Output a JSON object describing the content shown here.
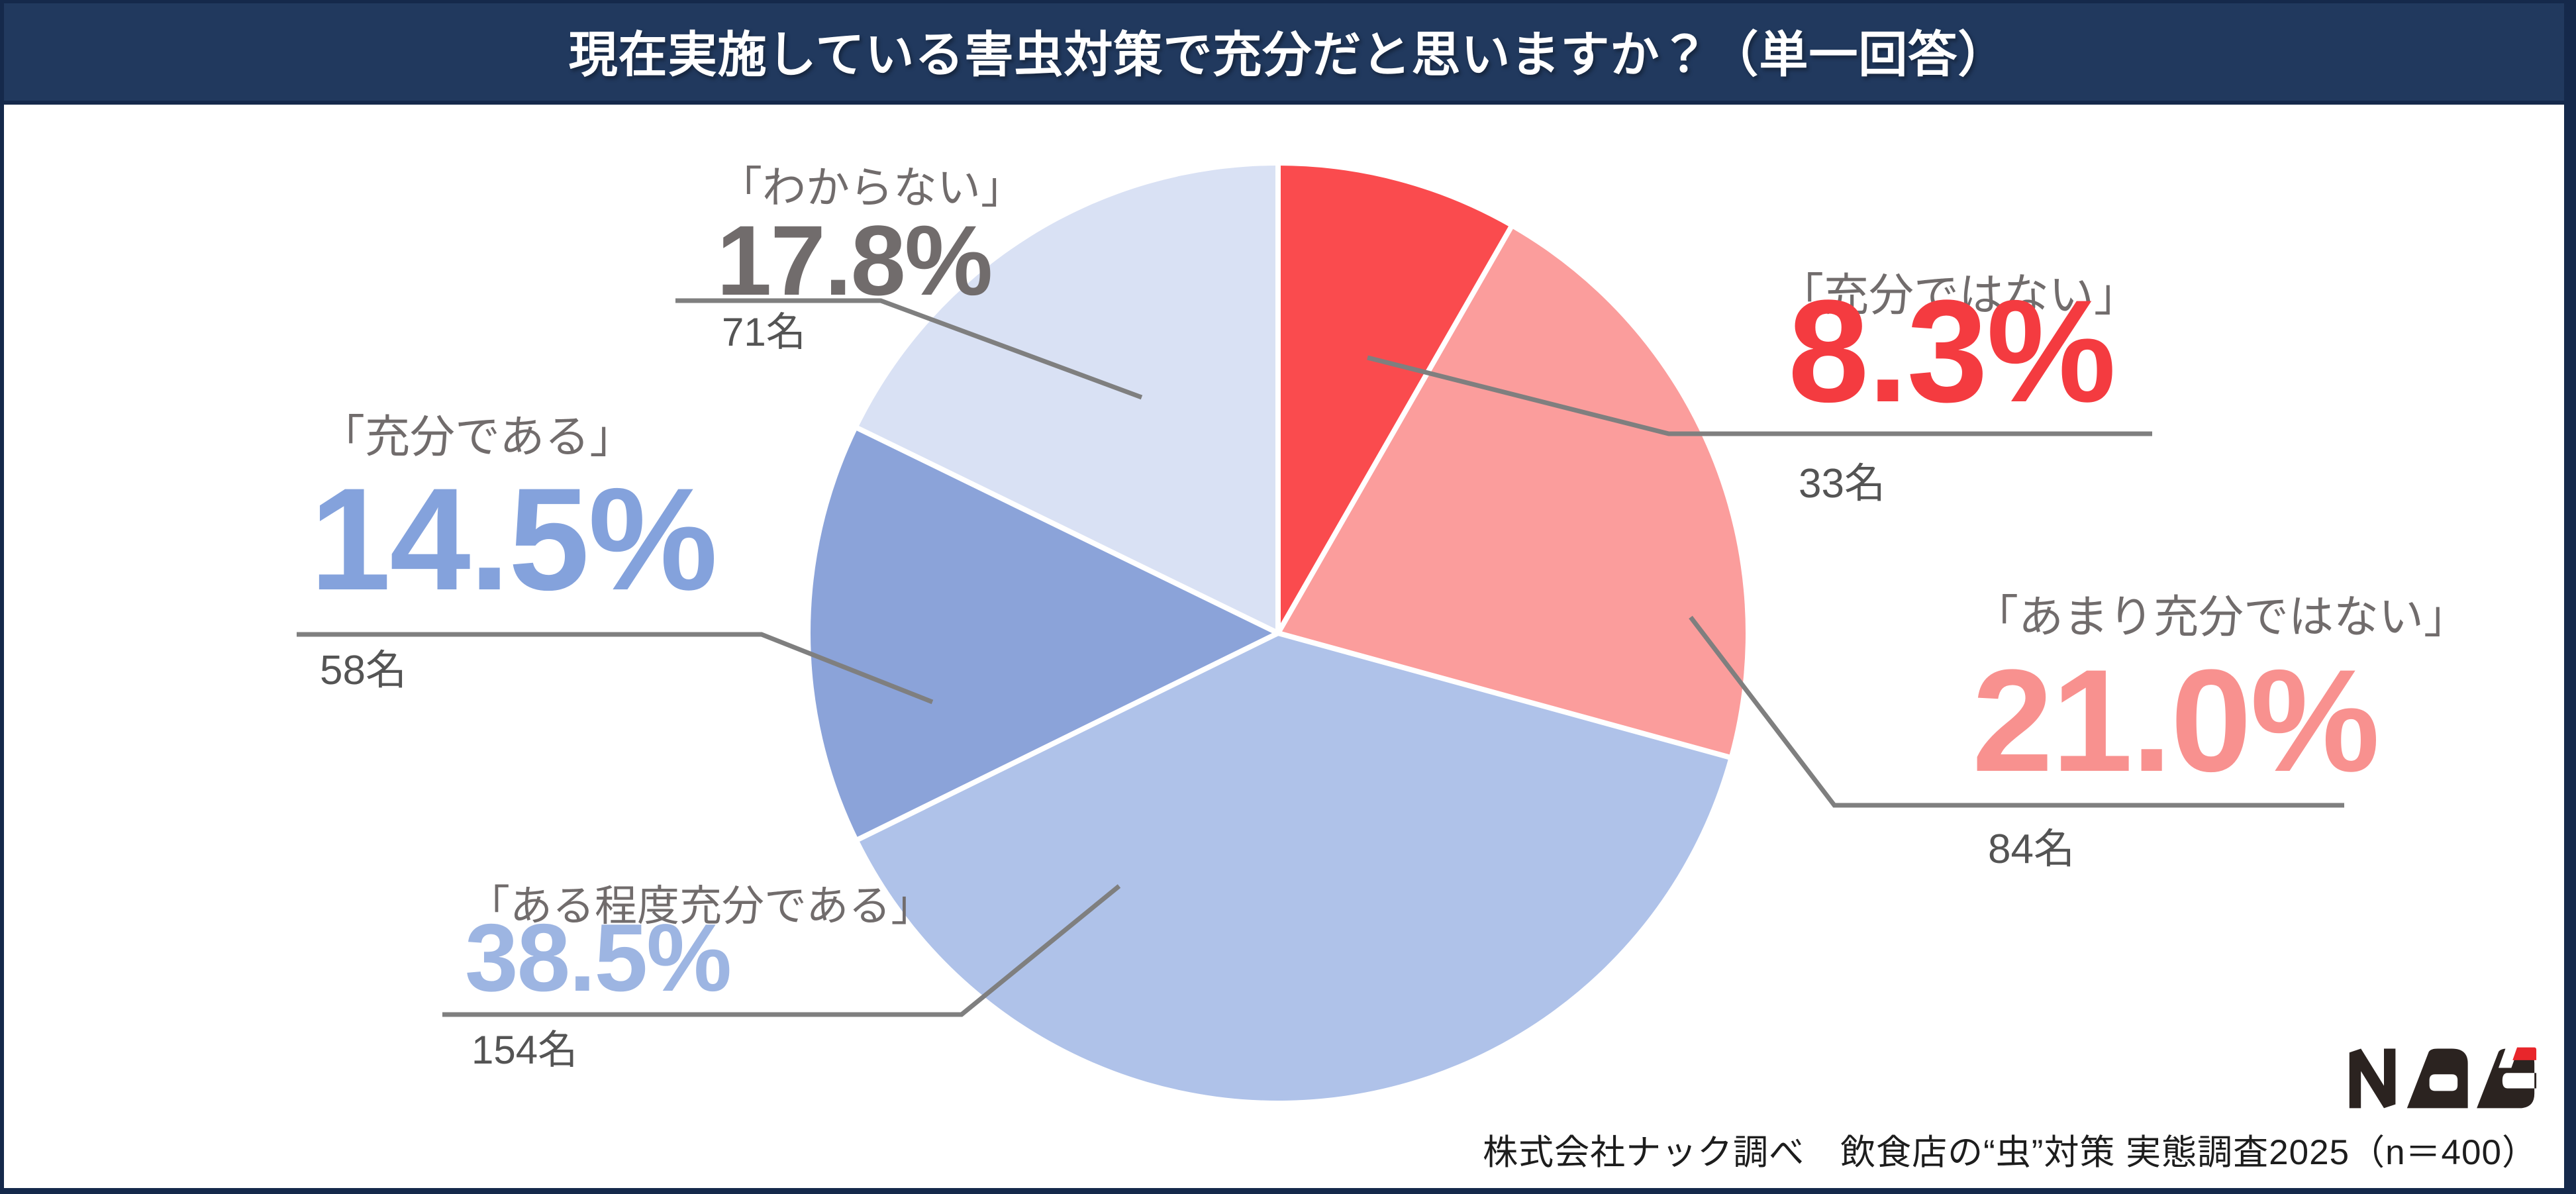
{
  "header": {
    "title": "現在実施している害虫対策で充分だと思いますか？（単一回答）"
  },
  "chart_data": {
    "type": "pie",
    "title": "現在実施している害虫対策で充分だと思いますか？（単一回答）",
    "start_angle": "12時方向",
    "direction": "clockwise",
    "legend_position": "around-pie",
    "total_n": 400,
    "slices": [
      {
        "name": "充分ではない",
        "label": "「充分ではない」",
        "pct": 8.3,
        "pct_text": "8.3%",
        "count": 33,
        "count_text": "33名",
        "color": "#FA4B4E",
        "text_color": "#F43B40"
      },
      {
        "name": "あまり充分ではない",
        "label": "「あまり充分ではない」",
        "pct": 21.0,
        "pct_text": "21.0%",
        "count": 84,
        "count_text": "84名",
        "color": "#FB9D9C",
        "text_color": "#F8918F"
      },
      {
        "name": "ある程度充分である",
        "label": "「ある程度充分である」",
        "pct": 38.5,
        "pct_text": "38.5%",
        "count": 154,
        "count_text": "154名",
        "color": "#AFC2E9",
        "text_color": "#9DB5E2"
      },
      {
        "name": "充分である",
        "label": "「充分である」",
        "pct": 14.5,
        "pct_text": "14.5%",
        "count": 58,
        "count_text": "58名",
        "color": "#8BA3D9",
        "text_color": "#84A2DC"
      },
      {
        "name": "わからない",
        "label": "「わからない」",
        "pct": 17.8,
        "pct_text": "17.8%",
        "count": 71,
        "count_text": "71名",
        "color": "#D9E1F4",
        "text_color": "#716C6C"
      }
    ],
    "gap_color": "#FFFFFF",
    "leader_line_color": "#7F7F7F"
  },
  "footer": {
    "source": "株式会社ナック調べ　飲食店の“虫”対策 実態調査2025（n＝400）",
    "logo_text": "Nac"
  },
  "colors": {
    "header_bg": "#21395E",
    "frame": "#15294B",
    "logo_dark": "#2B2320",
    "logo_red": "#E8262B"
  }
}
